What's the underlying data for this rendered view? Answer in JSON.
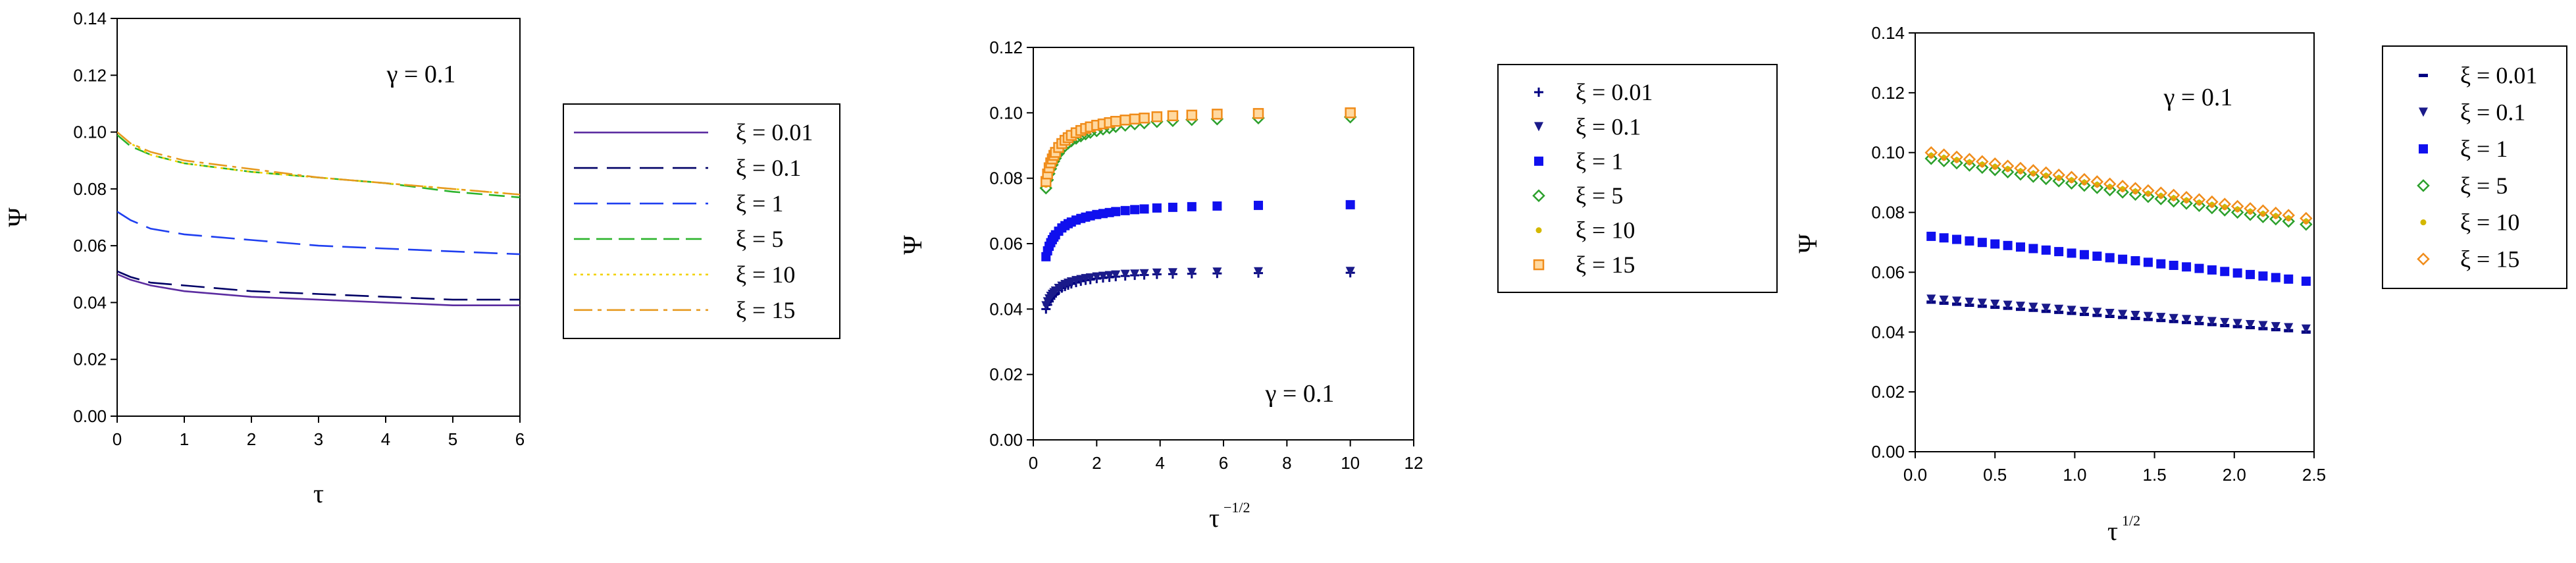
{
  "chart_data": [
    {
      "type": "line",
      "title": "",
      "annotation": "γ = 0.1",
      "xlabel": "τ",
      "ylabel": "Ψ",
      "xlim": [
        0,
        6
      ],
      "ylim": [
        0,
        0.14
      ],
      "x_ticks": [
        "0",
        "1",
        "2",
        "3",
        "4",
        "5",
        "6"
      ],
      "y_ticks": [
        "0.00",
        "0.02",
        "0.04",
        "0.06",
        "0.08",
        "0.10",
        "0.12",
        "0.14"
      ],
      "grid": false,
      "legend_position": "right",
      "series": [
        {
          "name": "ξ = 0.01",
          "color": "#5b2ca0",
          "dash": "solid",
          "x": [
            0,
            0.2,
            0.5,
            1,
            2,
            3,
            4,
            5,
            6
          ],
          "values": [
            0.05,
            0.048,
            0.046,
            0.044,
            0.042,
            0.041,
            0.04,
            0.039,
            0.039
          ]
        },
        {
          "name": "ξ = 0.1",
          "color": "#000066",
          "dash": "long",
          "x": [
            0,
            0.2,
            0.5,
            1,
            2,
            3,
            4,
            5,
            6
          ],
          "values": [
            0.051,
            0.049,
            0.047,
            0.046,
            0.044,
            0.043,
            0.042,
            0.041,
            0.041
          ]
        },
        {
          "name": "ξ = 1",
          "color": "#1f3ff0",
          "dash": "long",
          "x": [
            0,
            0.2,
            0.5,
            1,
            2,
            3,
            4,
            5,
            6
          ],
          "values": [
            0.072,
            0.069,
            0.066,
            0.064,
            0.062,
            0.06,
            0.059,
            0.058,
            0.057
          ]
        },
        {
          "name": "ξ = 5",
          "color": "#2bb32b",
          "dash": "medium",
          "x": [
            0,
            0.2,
            0.5,
            1,
            2,
            3,
            4,
            5,
            6
          ],
          "values": [
            0.099,
            0.095,
            0.092,
            0.089,
            0.086,
            0.084,
            0.082,
            0.079,
            0.077
          ]
        },
        {
          "name": "ξ = 10",
          "color": "#f2d200",
          "dash": "dot",
          "x": [
            0,
            0.2,
            0.5,
            1,
            2,
            3,
            4,
            5,
            6
          ],
          "values": [
            0.1,
            0.096,
            0.092,
            0.089,
            0.086,
            0.084,
            0.082,
            0.08,
            0.078
          ]
        },
        {
          "name": "ξ = 15",
          "color": "#e69a1f",
          "dash": "dashdot",
          "x": [
            0,
            0.2,
            0.5,
            1,
            2,
            3,
            4,
            5,
            6
          ],
          "values": [
            0.1,
            0.096,
            0.093,
            0.09,
            0.087,
            0.084,
            0.082,
            0.08,
            0.078
          ]
        }
      ]
    },
    {
      "type": "scatter",
      "title": "",
      "annotation": "γ = 0.1",
      "xlabel": "τ",
      "xlabel_superscript": "−1/2",
      "ylabel": "Ψ",
      "xlim": [
        0,
        12
      ],
      "ylim": [
        0,
        0.12
      ],
      "x_ticks": [
        "0",
        "2",
        "4",
        "6",
        "8",
        "10",
        "12"
      ],
      "y_ticks": [
        "0.00",
        "0.02",
        "0.04",
        "0.06",
        "0.08",
        "0.10",
        "0.12"
      ],
      "grid": false,
      "legend_position": "right",
      "x": [
        0.4,
        0.45,
        0.5,
        0.55,
        0.6,
        0.65,
        0.7,
        0.8,
        0.9,
        1.0,
        1.1,
        1.2,
        1.35,
        1.5,
        1.65,
        1.8,
        2.0,
        2.2,
        2.4,
        2.6,
        2.9,
        3.2,
        3.5,
        3.9,
        4.4,
        5.0,
        5.8,
        7.1,
        10.0
      ],
      "series": [
        {
          "name": "ξ = 0.01",
          "color": "#000080",
          "marker": "plus",
          "values": [
            0.04,
            0.0413,
            0.0423,
            0.0431,
            0.0438,
            0.0444,
            0.0449,
            0.0457,
            0.0464,
            0.0469,
            0.0473,
            0.0477,
            0.0481,
            0.0485,
            0.0488,
            0.049,
            0.0493,
            0.0495,
            0.0497,
            0.0499,
            0.0501,
            0.0503,
            0.0504,
            0.0506,
            0.0507,
            0.0508,
            0.0509,
            0.051,
            0.0511
          ]
        },
        {
          "name": "ξ = 0.1",
          "color": "#1a1a8a",
          "marker": "tri",
          "values": [
            0.041,
            0.0422,
            0.0431,
            0.0439,
            0.0445,
            0.045,
            0.0455,
            0.0463,
            0.047,
            0.0475,
            0.0479,
            0.0483,
            0.0487,
            0.049,
            0.0493,
            0.0495,
            0.0498,
            0.05,
            0.0502,
            0.0504,
            0.0506,
            0.0507,
            0.0508,
            0.051,
            0.0511,
            0.0512,
            0.0513,
            0.0514,
            0.0515
          ]
        },
        {
          "name": "ξ = 1",
          "color": "#1010ee",
          "marker": "square",
          "values": [
            0.056,
            0.0578,
            0.0592,
            0.0603,
            0.0612,
            0.062,
            0.0627,
            0.0638,
            0.0648,
            0.0655,
            0.0661,
            0.0666,
            0.0672,
            0.0677,
            0.0681,
            0.0685,
            0.0689,
            0.0692,
            0.0695,
            0.0698,
            0.0701,
            0.0704,
            0.0706,
            0.0709,
            0.0711,
            0.0713,
            0.0715,
            0.0717,
            0.0719
          ]
        },
        {
          "name": "ξ = 5",
          "color": "#2ca02c",
          "marker": "diamond",
          "values": [
            0.077,
            0.0795,
            0.0814,
            0.0829,
            0.0841,
            0.0852,
            0.0861,
            0.0876,
            0.0889,
            0.0899,
            0.0907,
            0.0914,
            0.0922,
            0.0929,
            0.0935,
            0.094,
            0.0945,
            0.095,
            0.0954,
            0.0958,
            0.0962,
            0.0966,
            0.0969,
            0.0973,
            0.0976,
            0.0979,
            0.0981,
            0.0984,
            0.0987
          ]
        },
        {
          "name": "ξ = 10",
          "color": "#d4b800",
          "marker": "dot",
          "values": [
            0.078,
            0.0804,
            0.0823,
            0.0838,
            0.0851,
            0.0862,
            0.0871,
            0.0886,
            0.0899,
            0.0909,
            0.0917,
            0.0924,
            0.0932,
            0.0939,
            0.0945,
            0.095,
            0.0955,
            0.096,
            0.0964,
            0.0968,
            0.0972,
            0.0976,
            0.0979,
            0.0983,
            0.0986,
            0.0989,
            0.0991,
            0.0994,
            0.0997
          ]
        },
        {
          "name": "ξ = 15",
          "color": "#f08c1a",
          "marker": "square-open",
          "values": [
            0.079,
            0.0813,
            0.0832,
            0.0847,
            0.0859,
            0.087,
            0.0879,
            0.0894,
            0.0906,
            0.0916,
            0.0924,
            0.0931,
            0.0939,
            0.0946,
            0.0952,
            0.0957,
            0.0962,
            0.0966,
            0.097,
            0.0974,
            0.0978,
            0.0981,
            0.0984,
            0.0988,
            0.0991,
            0.0993,
            0.0996,
            0.0998,
            0.1
          ]
        }
      ]
    },
    {
      "type": "scatter",
      "title": "",
      "annotation": "γ = 0.1",
      "xlabel": "τ",
      "xlabel_superscript": "1/2",
      "ylabel": "Ψ",
      "xlim": [
        0,
        2.5
      ],
      "ylim": [
        0,
        0.14
      ],
      "x_ticks": [
        "0.0",
        "0.5",
        "1.0",
        "1.5",
        "2.0",
        "2.5"
      ],
      "y_ticks": [
        "0.00",
        "0.02",
        "0.04",
        "0.06",
        "0.08",
        "0.10",
        "0.12",
        "0.14"
      ],
      "grid": false,
      "legend_position": "right",
      "x": [
        0.1,
        0.18,
        0.26,
        0.34,
        0.42,
        0.5,
        0.58,
        0.66,
        0.74,
        0.82,
        0.9,
        0.98,
        1.06,
        1.14,
        1.22,
        1.3,
        1.38,
        1.46,
        1.54,
        1.62,
        1.7,
        1.78,
        1.86,
        1.94,
        2.02,
        2.1,
        2.18,
        2.26,
        2.34,
        2.45
      ],
      "series": [
        {
          "name": "ξ = 0.01",
          "color": "#000080",
          "marker": "dash",
          "y_start": 0.05,
          "y_end": 0.04
        },
        {
          "name": "ξ = 0.1",
          "color": "#1a1a8a",
          "marker": "tri",
          "y_start": 0.051,
          "y_end": 0.041
        },
        {
          "name": "ξ = 1",
          "color": "#1010ee",
          "marker": "square",
          "y_start": 0.072,
          "y_end": 0.057
        },
        {
          "name": "ξ = 5",
          "color": "#2ca02c",
          "marker": "diamond",
          "y_start": 0.098,
          "y_end": 0.076
        },
        {
          "name": "ξ = 10",
          "color": "#d4b800",
          "marker": "dot",
          "y_start": 0.099,
          "y_end": 0.077
        },
        {
          "name": "ξ = 15",
          "color": "#f08c1a",
          "marker": "diamond",
          "y_start": 0.1,
          "y_end": 0.078
        }
      ]
    }
  ]
}
